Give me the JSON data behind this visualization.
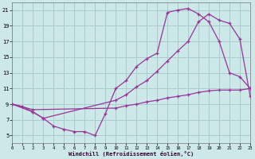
{
  "bg_color": "#cce8e8",
  "grid_color": "#aacccc",
  "line_color": "#993399",
  "xlim": [
    0,
    23
  ],
  "ylim": [
    4,
    22
  ],
  "xticks": [
    0,
    1,
    2,
    3,
    4,
    5,
    6,
    7,
    8,
    9,
    10,
    11,
    12,
    13,
    14,
    15,
    16,
    17,
    18,
    19,
    20,
    21,
    22,
    23
  ],
  "yticks": [
    5,
    7,
    9,
    11,
    13,
    15,
    17,
    19,
    21
  ],
  "xlabel": "Windchill (Refroidissement éolien,°C)",
  "curve1_x": [
    0,
    1,
    2,
    3,
    4,
    5,
    6,
    7,
    8,
    9,
    10,
    11,
    12,
    13,
    14,
    15,
    16,
    17,
    18,
    19,
    20,
    21,
    22,
    23
  ],
  "curve1_y": [
    9.0,
    8.7,
    8.0,
    7.2,
    6.2,
    5.8,
    5.5,
    5.5,
    5.0,
    7.8,
    11.0,
    12.0,
    13.8,
    14.8,
    15.5,
    20.7,
    21.0,
    21.2,
    20.5,
    19.5,
    17.0,
    13.0,
    12.5,
    11.0
  ],
  "curve2_x": [
    0,
    2,
    3,
    10,
    11,
    12,
    13,
    14,
    15,
    16,
    17,
    18,
    19,
    20,
    21,
    22,
    23
  ],
  "curve2_y": [
    9.0,
    8.0,
    7.2,
    9.5,
    10.2,
    11.2,
    12.0,
    13.2,
    14.5,
    15.8,
    17.0,
    19.5,
    20.5,
    19.7,
    19.3,
    17.3,
    10.0
  ],
  "curve3_x": [
    0,
    2,
    10,
    11,
    12,
    13,
    14,
    15,
    16,
    17,
    18,
    19,
    20,
    21,
    22,
    23
  ],
  "curve3_y": [
    9.0,
    8.3,
    8.5,
    8.8,
    9.0,
    9.3,
    9.5,
    9.8,
    10.0,
    10.2,
    10.5,
    10.7,
    10.8,
    10.8,
    10.8,
    11.0
  ]
}
